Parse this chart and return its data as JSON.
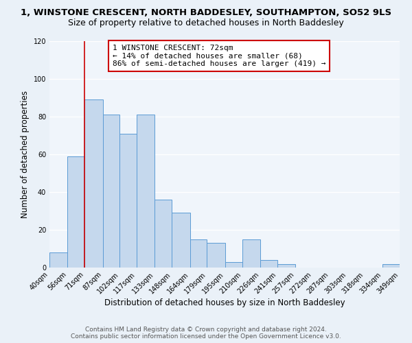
{
  "title": "1, WINSTONE CRESCENT, NORTH BADDESLEY, SOUTHAMPTON, SO52 9LS",
  "subtitle": "Size of property relative to detached houses in North Baddesley",
  "xlabel": "Distribution of detached houses by size in North Baddesley",
  "ylabel": "Number of detached properties",
  "bin_edges": [
    40,
    56,
    71,
    87,
    102,
    117,
    133,
    148,
    164,
    179,
    195,
    210,
    226,
    241,
    257,
    272,
    287,
    303,
    318,
    334,
    349
  ],
  "bar_heights": [
    8,
    59,
    89,
    81,
    71,
    81,
    36,
    29,
    15,
    13,
    3,
    15,
    4,
    2,
    0,
    0,
    0,
    0,
    0,
    2
  ],
  "bar_color": "#c5d8ed",
  "bar_edge_color": "#5b9bd5",
  "vline_x": 71,
  "vline_color": "#cc0000",
  "annotation_title": "1 WINSTONE CRESCENT: 72sqm",
  "annotation_line1": "← 14% of detached houses are smaller (68)",
  "annotation_line2": "86% of semi-detached houses are larger (419) →",
  "annotation_box_color": "#cc0000",
  "annotation_bg": "#ffffff",
  "ylim": [
    0,
    120
  ],
  "yticks": [
    0,
    20,
    40,
    60,
    80,
    100,
    120
  ],
  "tick_labels": [
    "40sqm",
    "56sqm",
    "71sqm",
    "87sqm",
    "102sqm",
    "117sqm",
    "133sqm",
    "148sqm",
    "164sqm",
    "179sqm",
    "195sqm",
    "210sqm",
    "226sqm",
    "241sqm",
    "257sqm",
    "272sqm",
    "287sqm",
    "303sqm",
    "318sqm",
    "334sqm",
    "349sqm"
  ],
  "footer1": "Contains HM Land Registry data © Crown copyright and database right 2024.",
  "footer2": "Contains public sector information licensed under the Open Government Licence v3.0.",
  "bg_color": "#eaf1f8",
  "plot_bg_color": "#f0f5fb",
  "grid_color": "#ffffff",
  "title_fontsize": 9.5,
  "subtitle_fontsize": 9,
  "axis_label_fontsize": 8.5,
  "tick_fontsize": 7,
  "annotation_fontsize": 8,
  "footer_fontsize": 6.5
}
